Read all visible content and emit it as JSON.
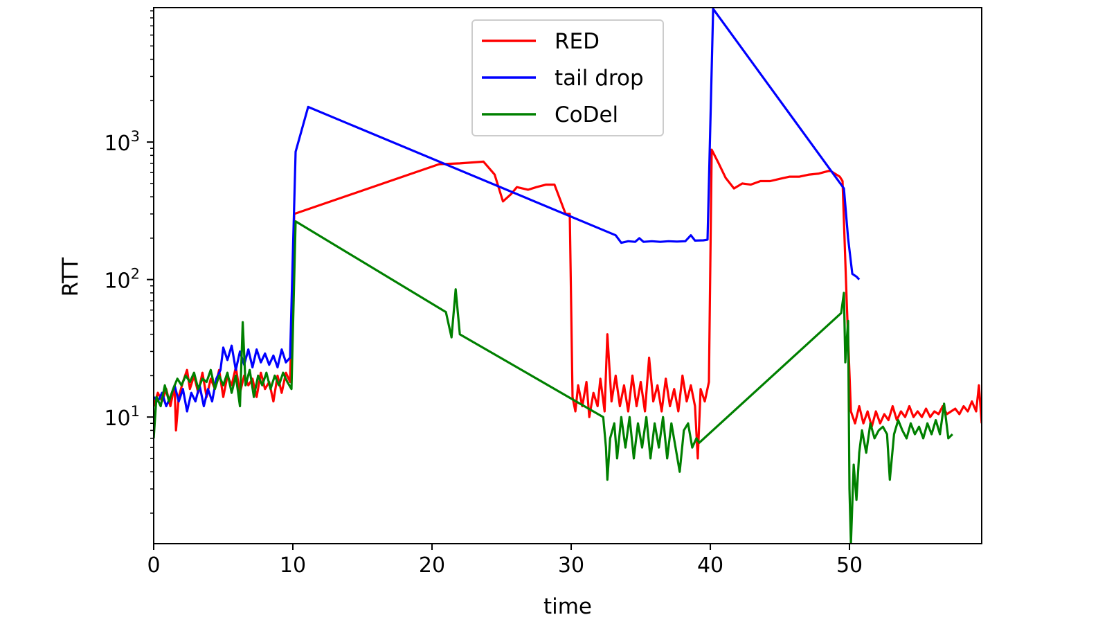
{
  "chart_data": {
    "type": "line",
    "title": "",
    "xlabel": "time",
    "ylabel": "RTT",
    "yscale": "log",
    "xlim": [
      0,
      59.5
    ],
    "ylim": [
      1.2,
      9500
    ],
    "grid": false,
    "legend_position": "top-center",
    "x_ticks": [
      {
        "value": 0,
        "label": "0"
      },
      {
        "value": 10,
        "label": "10"
      },
      {
        "value": 20,
        "label": "20"
      },
      {
        "value": 30,
        "label": "30"
      },
      {
        "value": 40,
        "label": "40"
      },
      {
        "value": 50,
        "label": "50"
      }
    ],
    "y_ticks": [
      {
        "value": 10,
        "base": "10",
        "exp": "1"
      },
      {
        "value": 100,
        "base": "10",
        "exp": "2"
      },
      {
        "value": 1000,
        "base": "10",
        "exp": "3"
      }
    ],
    "series": [
      {
        "name": "RED",
        "color": "#ff0000",
        "points": [
          [
            0,
            12
          ],
          [
            0.3,
            15
          ],
          [
            0.6,
            13
          ],
          [
            0.9,
            16
          ],
          [
            1.2,
            12
          ],
          [
            1.5,
            17
          ],
          [
            1.6,
            8
          ],
          [
            1.8,
            14
          ],
          [
            2.1,
            18
          ],
          [
            2.4,
            22
          ],
          [
            2.6,
            16
          ],
          [
            2.9,
            20
          ],
          [
            3.2,
            15
          ],
          [
            3.5,
            21
          ],
          [
            3.8,
            14
          ],
          [
            4.1,
            19
          ],
          [
            4.4,
            16
          ],
          [
            4.7,
            22
          ],
          [
            5.0,
            14
          ],
          [
            5.3,
            20
          ],
          [
            5.6,
            17
          ],
          [
            5.9,
            23
          ],
          [
            6.2,
            15
          ],
          [
            6.5,
            20
          ],
          [
            6.8,
            17
          ],
          [
            7.1,
            19
          ],
          [
            7.4,
            14
          ],
          [
            7.7,
            21
          ],
          [
            8.0,
            16
          ],
          [
            8.3,
            18
          ],
          [
            8.6,
            13
          ],
          [
            8.9,
            20
          ],
          [
            9.2,
            15
          ],
          [
            9.5,
            21
          ],
          [
            9.8,
            18
          ],
          [
            10.1,
            300
          ],
          [
            20.5,
            690
          ],
          [
            22.0,
            700
          ],
          [
            23.7,
            720
          ],
          [
            24.5,
            580
          ],
          [
            25.1,
            370
          ],
          [
            25.7,
            420
          ],
          [
            26.1,
            470
          ],
          [
            26.9,
            450
          ],
          [
            27.5,
            470
          ],
          [
            28.2,
            490
          ],
          [
            28.8,
            490
          ],
          [
            29.6,
            300
          ],
          [
            29.9,
            300
          ],
          [
            30.1,
            14
          ],
          [
            30.3,
            11
          ],
          [
            30.5,
            17
          ],
          [
            30.8,
            12
          ],
          [
            31.1,
            18
          ],
          [
            31.3,
            10
          ],
          [
            31.6,
            15
          ],
          [
            31.9,
            12
          ],
          [
            32.1,
            19
          ],
          [
            32.4,
            11
          ],
          [
            32.6,
            40
          ],
          [
            32.9,
            13
          ],
          [
            33.2,
            20
          ],
          [
            33.5,
            12
          ],
          [
            33.8,
            17
          ],
          [
            34.1,
            11
          ],
          [
            34.4,
            20
          ],
          [
            34.7,
            12
          ],
          [
            35.0,
            18
          ],
          [
            35.3,
            11
          ],
          [
            35.6,
            27
          ],
          [
            35.9,
            13
          ],
          [
            36.2,
            17
          ],
          [
            36.5,
            11
          ],
          [
            36.8,
            19
          ],
          [
            37.1,
            12
          ],
          [
            37.4,
            16
          ],
          [
            37.7,
            11
          ],
          [
            38.0,
            20
          ],
          [
            38.3,
            13
          ],
          [
            38.6,
            17
          ],
          [
            38.9,
            12
          ],
          [
            39.1,
            5
          ],
          [
            39.3,
            16
          ],
          [
            39.6,
            13
          ],
          [
            39.9,
            18
          ],
          [
            40.1,
            880
          ],
          [
            40.6,
            700
          ],
          [
            41.1,
            550
          ],
          [
            41.7,
            460
          ],
          [
            42.3,
            500
          ],
          [
            42.9,
            490
          ],
          [
            43.6,
            520
          ],
          [
            44.3,
            520
          ],
          [
            45.0,
            540
          ],
          [
            45.7,
            560
          ],
          [
            46.4,
            560
          ],
          [
            47.1,
            580
          ],
          [
            47.8,
            590
          ],
          [
            48.6,
            620
          ],
          [
            49.3,
            560
          ],
          [
            49.5,
            520
          ],
          [
            49.8,
            70
          ],
          [
            50.1,
            11
          ],
          [
            50.4,
            9
          ],
          [
            50.7,
            12
          ],
          [
            51.0,
            9
          ],
          [
            51.3,
            11
          ],
          [
            51.6,
            8.5
          ],
          [
            51.9,
            11
          ],
          [
            52.2,
            9
          ],
          [
            52.5,
            10.5
          ],
          [
            52.8,
            9.5
          ],
          [
            53.1,
            12
          ],
          [
            53.4,
            9.5
          ],
          [
            53.7,
            11
          ],
          [
            54.0,
            10
          ],
          [
            54.3,
            12
          ],
          [
            54.6,
            10
          ],
          [
            54.9,
            11
          ],
          [
            55.2,
            10
          ],
          [
            55.5,
            11.5
          ],
          [
            55.8,
            10
          ],
          [
            56.1,
            11
          ],
          [
            56.4,
            10.5
          ],
          [
            56.7,
            12
          ],
          [
            57.0,
            10.5
          ],
          [
            57.3,
            11
          ],
          [
            57.6,
            11.5
          ],
          [
            57.9,
            10.5
          ],
          [
            58.2,
            12
          ],
          [
            58.5,
            11
          ],
          [
            58.8,
            13
          ],
          [
            59.1,
            11
          ],
          [
            59.3,
            17
          ],
          [
            59.5,
            9
          ]
        ]
      },
      {
        "name": "tail drop",
        "color": "#0000ff",
        "points": [
          [
            0,
            14
          ],
          [
            0.3,
            13
          ],
          [
            0.6,
            15
          ],
          [
            0.9,
            12
          ],
          [
            1.2,
            14
          ],
          [
            1.5,
            17
          ],
          [
            1.8,
            13
          ],
          [
            2.1,
            16
          ],
          [
            2.4,
            11
          ],
          [
            2.7,
            15
          ],
          [
            3.0,
            13
          ],
          [
            3.3,
            17
          ],
          [
            3.6,
            12
          ],
          [
            3.9,
            16
          ],
          [
            4.2,
            13
          ],
          [
            4.5,
            19
          ],
          [
            4.8,
            22
          ],
          [
            5.0,
            32
          ],
          [
            5.3,
            26
          ],
          [
            5.6,
            33
          ],
          [
            5.9,
            22
          ],
          [
            6.2,
            30
          ],
          [
            6.5,
            24
          ],
          [
            6.8,
            31
          ],
          [
            7.1,
            23
          ],
          [
            7.4,
            31
          ],
          [
            7.7,
            25
          ],
          [
            8.0,
            29
          ],
          [
            8.3,
            24
          ],
          [
            8.6,
            28
          ],
          [
            8.9,
            23
          ],
          [
            9.2,
            31
          ],
          [
            9.5,
            25
          ],
          [
            9.8,
            27
          ],
          [
            10.2,
            850
          ],
          [
            11.1,
            1800
          ],
          [
            33.2,
            210
          ],
          [
            33.6,
            185
          ],
          [
            34.1,
            190
          ],
          [
            34.6,
            188
          ],
          [
            34.9,
            200
          ],
          [
            35.2,
            188
          ],
          [
            35.8,
            190
          ],
          [
            36.4,
            188
          ],
          [
            37.0,
            190
          ],
          [
            37.6,
            189
          ],
          [
            38.2,
            190
          ],
          [
            38.6,
            210
          ],
          [
            38.9,
            192
          ],
          [
            39.5,
            193
          ],
          [
            39.8,
            195
          ],
          [
            40.2,
            9300
          ],
          [
            49.6,
            460
          ],
          [
            49.9,
            200
          ],
          [
            50.2,
            110
          ],
          [
            50.5,
            105
          ],
          [
            50.7,
            100
          ]
        ]
      },
      {
        "name": "CoDel",
        "color": "#008000",
        "points": [
          [
            0,
            7
          ],
          [
            0.2,
            14
          ],
          [
            0.5,
            12
          ],
          [
            0.8,
            17
          ],
          [
            1.1,
            13
          ],
          [
            1.4,
            16
          ],
          [
            1.7,
            19
          ],
          [
            2.0,
            17
          ],
          [
            2.3,
            20
          ],
          [
            2.6,
            18
          ],
          [
            2.9,
            21
          ],
          [
            3.2,
            16
          ],
          [
            3.5,
            19
          ],
          [
            3.8,
            18
          ],
          [
            4.1,
            22
          ],
          [
            4.4,
            16
          ],
          [
            4.7,
            20
          ],
          [
            5.0,
            17
          ],
          [
            5.3,
            21
          ],
          [
            5.6,
            15
          ],
          [
            5.9,
            20
          ],
          [
            6.2,
            12
          ],
          [
            6.4,
            49
          ],
          [
            6.6,
            17
          ],
          [
            6.9,
            22
          ],
          [
            7.2,
            14
          ],
          [
            7.5,
            20
          ],
          [
            7.8,
            17
          ],
          [
            8.1,
            21
          ],
          [
            8.4,
            16
          ],
          [
            8.7,
            20
          ],
          [
            9.0,
            17
          ],
          [
            9.3,
            21
          ],
          [
            9.6,
            18
          ],
          [
            9.9,
            16
          ],
          [
            10.2,
            265
          ],
          [
            21.0,
            58
          ],
          [
            21.4,
            38
          ],
          [
            21.7,
            85
          ],
          [
            22.0,
            40
          ],
          [
            32.3,
            10
          ],
          [
            32.5,
            6
          ],
          [
            32.6,
            3.5
          ],
          [
            32.8,
            7
          ],
          [
            33.1,
            9
          ],
          [
            33.3,
            5
          ],
          [
            33.6,
            10
          ],
          [
            33.9,
            6
          ],
          [
            34.2,
            10
          ],
          [
            34.5,
            5
          ],
          [
            34.8,
            9
          ],
          [
            35.1,
            6
          ],
          [
            35.4,
            10
          ],
          [
            35.7,
            5
          ],
          [
            36.0,
            9
          ],
          [
            36.3,
            6
          ],
          [
            36.6,
            10
          ],
          [
            36.9,
            5
          ],
          [
            37.2,
            9
          ],
          [
            37.5,
            6
          ],
          [
            37.8,
            4
          ],
          [
            38.1,
            8
          ],
          [
            38.4,
            9
          ],
          [
            38.7,
            6
          ],
          [
            39.0,
            7
          ],
          [
            39.2,
            6.5
          ],
          [
            49.4,
            57
          ],
          [
            49.6,
            80
          ],
          [
            49.7,
            25
          ],
          [
            49.9,
            50
          ],
          [
            50.0,
            3
          ],
          [
            50.1,
            1.2
          ],
          [
            50.3,
            4.5
          ],
          [
            50.5,
            2.5
          ],
          [
            50.7,
            5.5
          ],
          [
            50.9,
            8
          ],
          [
            51.2,
            5.5
          ],
          [
            51.5,
            9
          ],
          [
            51.8,
            7
          ],
          [
            52.1,
            8
          ],
          [
            52.4,
            8.5
          ],
          [
            52.7,
            7.5
          ],
          [
            52.9,
            3.5
          ],
          [
            53.2,
            7.5
          ],
          [
            53.5,
            9.5
          ],
          [
            53.8,
            8
          ],
          [
            54.1,
            7
          ],
          [
            54.4,
            9
          ],
          [
            54.7,
            7.5
          ],
          [
            55.0,
            8.5
          ],
          [
            55.3,
            7
          ],
          [
            55.6,
            9
          ],
          [
            55.9,
            7.5
          ],
          [
            56.2,
            9.5
          ],
          [
            56.5,
            7.5
          ],
          [
            56.8,
            12.5
          ],
          [
            57.1,
            7
          ],
          [
            57.4,
            7.5
          ]
        ]
      }
    ]
  }
}
